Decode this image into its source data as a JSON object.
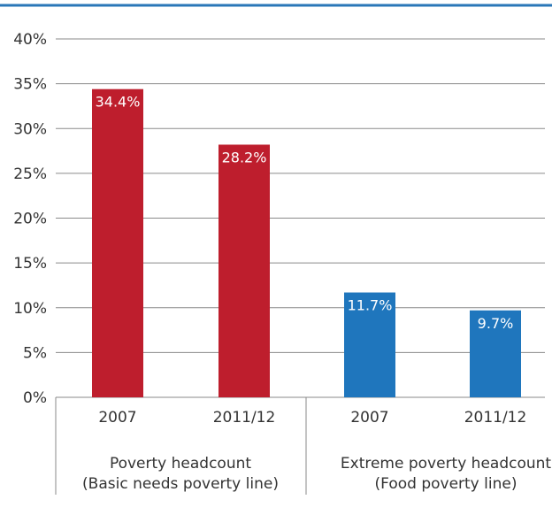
{
  "colors": {
    "top_rule": "#2a77b8",
    "poverty": "#be1e2d",
    "extreme": "#1f76bd"
  },
  "chart_data": {
    "type": "bar",
    "title": "",
    "xlabel": "",
    "ylabel": "",
    "ylim": [
      0,
      40
    ],
    "yticks": [
      0,
      5,
      10,
      15,
      20,
      25,
      30,
      35,
      40
    ],
    "ytick_labels": [
      "0%",
      "5%",
      "10%",
      "15%",
      "20%",
      "25%",
      "30%",
      "35%",
      "40%"
    ],
    "grid": true,
    "legend": "none",
    "groups": [
      {
        "label_line1": "Poverty headcount",
        "label_line2": "(Basic needs poverty line)",
        "color": "#be1e2d",
        "bars": [
          {
            "category": "2007",
            "value": 34.4,
            "label": "34.4%"
          },
          {
            "category": "2011/12",
            "value": 28.2,
            "label": "28.2%"
          }
        ]
      },
      {
        "label_line1": "Extreme poverty headcount",
        "label_line2": "(Food poverty line)",
        "color": "#1f76bd",
        "bars": [
          {
            "category": "2007",
            "value": 11.7,
            "label": "11.7%"
          },
          {
            "category": "2011/12",
            "value": 9.7,
            "label": "9.7%"
          }
        ]
      }
    ]
  }
}
